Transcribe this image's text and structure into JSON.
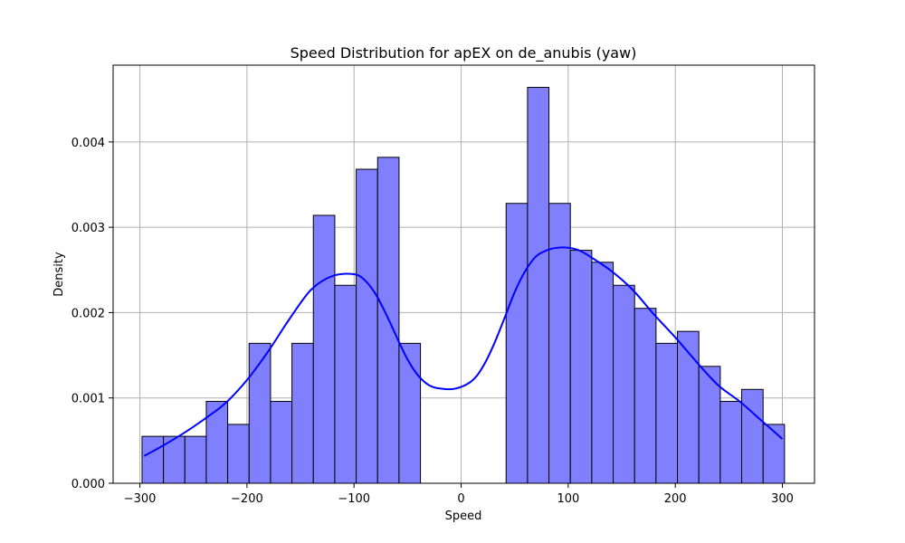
{
  "chart_data": {
    "type": "histogram",
    "title": "Speed Distribution for apEX on de_anubis (yaw)",
    "xlabel": "Speed",
    "ylabel": "Density",
    "xlim": [
      -325,
      330
    ],
    "ylim": [
      0,
      0.0049
    ],
    "grid": true,
    "x_ticks": [
      -300,
      -200,
      -100,
      0,
      100,
      200,
      300
    ],
    "x_tick_labels": [
      "−300",
      "−200",
      "−100",
      "0",
      "100",
      "200",
      "300"
    ],
    "y_ticks": [
      0,
      0.001,
      0.002,
      0.003,
      0.004
    ],
    "y_tick_labels": [
      "0.000",
      "0.001",
      "0.002",
      "0.003",
      "0.004"
    ],
    "bin_edges": [
      -298,
      -278,
      -258,
      -238,
      -218,
      -198,
      -178,
      -158,
      -138,
      -118,
      -98,
      -78,
      -58,
      -38,
      -18,
      2,
      22,
      42,
      62,
      82,
      102,
      122,
      142,
      162,
      182,
      202,
      222,
      242,
      262,
      282,
      302
    ],
    "densities": [
      0.00055,
      0.00055,
      0.00055,
      0.00096,
      0.00069,
      0.00164,
      0.00096,
      0.00164,
      0.00314,
      0.00232,
      0.00368,
      0.00382,
      0.00164,
      0,
      0,
      0,
      0,
      0.00328,
      0.00464,
      0.00328,
      0.00273,
      0.00259,
      0.00232,
      0.00205,
      0.00164,
      0.00178,
      0.00137,
      0.00096,
      0.0011,
      0.00069
    ],
    "kde": {
      "x": [
        -296,
        -280,
        -260,
        -240,
        -220,
        -200,
        -180,
        -160,
        -140,
        -120,
        -100,
        -90,
        -80,
        -70,
        -60,
        -50,
        -40,
        -30,
        -20,
        -5,
        10,
        20,
        30,
        40,
        50,
        60,
        70,
        80,
        90,
        100,
        110,
        120,
        140,
        160,
        180,
        200,
        220,
        240,
        260,
        280,
        300
      ],
      "y": [
        0.00032,
        0.00043,
        0.00058,
        0.00075,
        0.00094,
        0.00121,
        0.00155,
        0.00193,
        0.00227,
        0.00243,
        0.00245,
        0.00238,
        0.00222,
        0.00198,
        0.00171,
        0.00145,
        0.00126,
        0.00115,
        0.00111,
        0.00111,
        0.0012,
        0.00136,
        0.00161,
        0.00192,
        0.00224,
        0.00249,
        0.00266,
        0.00273,
        0.00276,
        0.00276,
        0.00273,
        0.00266,
        0.00249,
        0.00227,
        0.00198,
        0.00171,
        0.00142,
        0.00115,
        0.00096,
        0.00074,
        0.00052
      ]
    },
    "colors": {
      "bar_fill": "#8080ff",
      "bar_edge": "#000000",
      "kde_line": "#0000ff",
      "grid": "#b0b0b0"
    }
  }
}
